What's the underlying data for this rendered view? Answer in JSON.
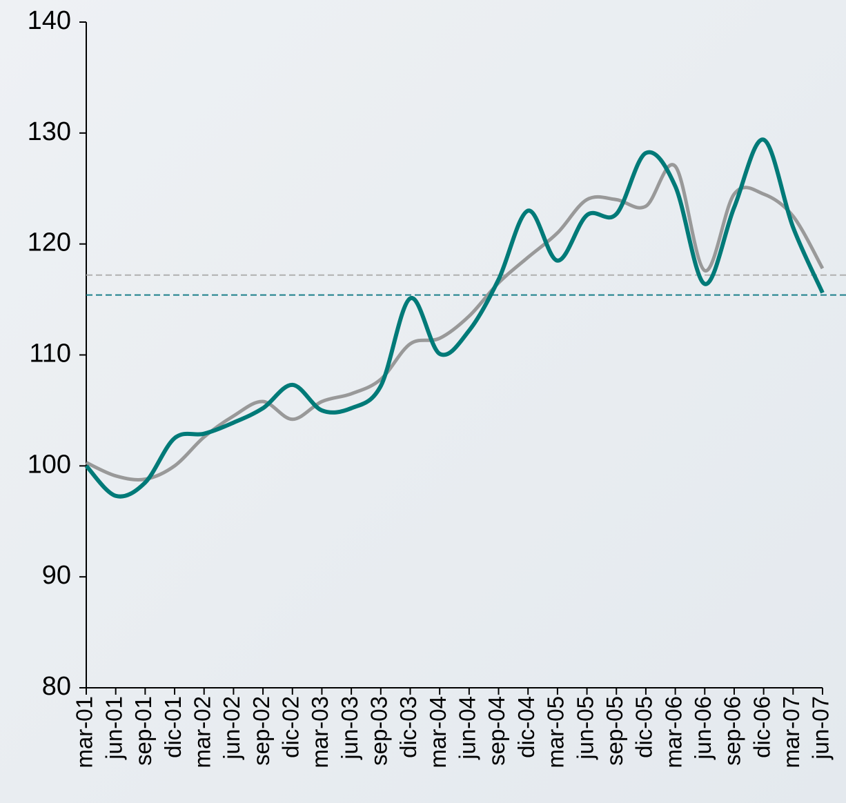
{
  "chart_data": {
    "type": "line",
    "categories": [
      "mar-01",
      "jun-01",
      "sep-01",
      "dic-01",
      "mar-02",
      "jun-02",
      "sep-02",
      "dic-02",
      "mar-03",
      "jun-03",
      "sep-03",
      "dic-03",
      "mar-04",
      "jun-04",
      "sep-04",
      "dic-04",
      "mar-05",
      "jun-05",
      "sep-05",
      "dic-05",
      "mar-06",
      "jun-06",
      "sep-06",
      "dic-06",
      "mar-07",
      "jun-07"
    ],
    "series": [
      {
        "color": "#999999",
        "values": [
          100.3,
          99.1,
          98.8,
          100,
          102.6,
          104.5,
          105.8,
          104.2,
          105.8,
          106.5,
          107.8,
          111,
          111.5,
          113.5,
          116.5,
          118.8,
          121,
          124,
          124,
          123.4,
          127,
          117.6,
          124.5,
          124.5,
          122.5,
          117.8
        ]
      },
      {
        "color": "#007a78",
        "values": [
          100,
          97.3,
          98.5,
          102.5,
          102.9,
          103.9,
          105.2,
          107.3,
          105,
          105.2,
          107.2,
          115.1,
          110.1,
          112.2,
          116.8,
          123,
          118.5,
          122.6,
          122.7,
          128.2,
          125.2,
          116.4,
          123.3,
          129.4,
          121.5,
          115.6
        ]
      }
    ],
    "reference_lines": [
      {
        "value": 117.2,
        "color": "#b0b0b0"
      },
      {
        "value": 115.4,
        "color": "#1a7f8a"
      }
    ],
    "ylim": [
      80,
      140
    ],
    "yticks": [
      80,
      90,
      100,
      110,
      120,
      130,
      140
    ],
    "grid": false
  }
}
